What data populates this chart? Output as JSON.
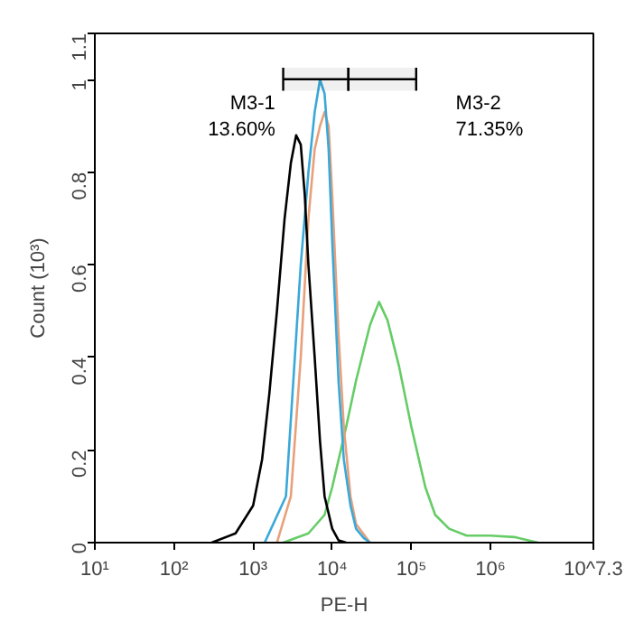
{
  "chart_data": {
    "type": "line",
    "xlabel": "PE-H",
    "ylabel": "Count (10³)",
    "log": "x",
    "xlim": [
      10,
      19952623
    ],
    "ylim": [
      0,
      1.1
    ],
    "xticks": [
      {
        "value": 10,
        "label": "10¹"
      },
      {
        "value": 100,
        "label": "10²"
      },
      {
        "value": 1000,
        "label": "10³"
      },
      {
        "value": 10000,
        "label": "10⁴"
      },
      {
        "value": 100000,
        "label": "10⁵"
      },
      {
        "value": 1000000,
        "label": "10⁶"
      },
      {
        "value": 19952623,
        "label": "10^7.3"
      }
    ],
    "yticks": [
      0,
      0.2,
      0.4,
      0.6,
      0.8,
      1,
      1.1
    ],
    "grid": false,
    "line_style": "solid",
    "marker": "none",
    "series": [
      {
        "color": "#66cc66",
        "x": [
          2400,
          5000,
          8000,
          10000,
          15000,
          20000,
          30000,
          39000,
          50000,
          70000,
          100000,
          150000,
          200000,
          300000,
          500000,
          1000000,
          2000000,
          3000000,
          4000000
        ],
        "values": [
          0,
          0.02,
          0.06,
          0.12,
          0.25,
          0.35,
          0.47,
          0.52,
          0.48,
          0.38,
          0.25,
          0.12,
          0.06,
          0.03,
          0.015,
          0.015,
          0.012,
          0.005,
          0
        ]
      },
      {
        "color": "#e8a07a",
        "x": [
          2000,
          3000,
          4000,
          5000,
          6000,
          7000,
          8000,
          9000,
          10000,
          12000,
          14000,
          17000,
          20000,
          30000
        ],
        "values": [
          0,
          0.1,
          0.4,
          0.7,
          0.85,
          0.9,
          0.93,
          0.9,
          0.75,
          0.45,
          0.25,
          0.1,
          0.04,
          0
        ]
      },
      {
        "color": "#3aa8d8",
        "x": [
          1400,
          2600,
          4000,
          5000,
          6000,
          7000,
          8000,
          9000,
          10000,
          12000,
          14000,
          17000,
          20000,
          25000,
          30000
        ],
        "values": [
          0,
          0.1,
          0.6,
          0.8,
          0.93,
          1.0,
          0.97,
          0.85,
          0.65,
          0.35,
          0.18,
          0.08,
          0.03,
          0.01,
          0
        ]
      },
      {
        "color": "#000000",
        "x": [
          300,
          600,
          1000,
          1300,
          1600,
          2000,
          2500,
          3000,
          3500,
          4000,
          4500,
          5000,
          6000,
          7000,
          8000,
          10000,
          12000,
          15000
        ],
        "values": [
          0,
          0.02,
          0.08,
          0.18,
          0.32,
          0.5,
          0.7,
          0.82,
          0.88,
          0.86,
          0.75,
          0.6,
          0.4,
          0.22,
          0.1,
          0.03,
          0.005,
          0
        ]
      }
    ],
    "bands": [
      {
        "axis": "x",
        "from": 2400,
        "to": 16000,
        "label": "M3-1\n13.60%",
        "color": "#000000"
      },
      {
        "axis": "x",
        "from": 16000,
        "to": 115000,
        "label": "M3-2\n71.35%",
        "color": "#000000"
      }
    ]
  }
}
